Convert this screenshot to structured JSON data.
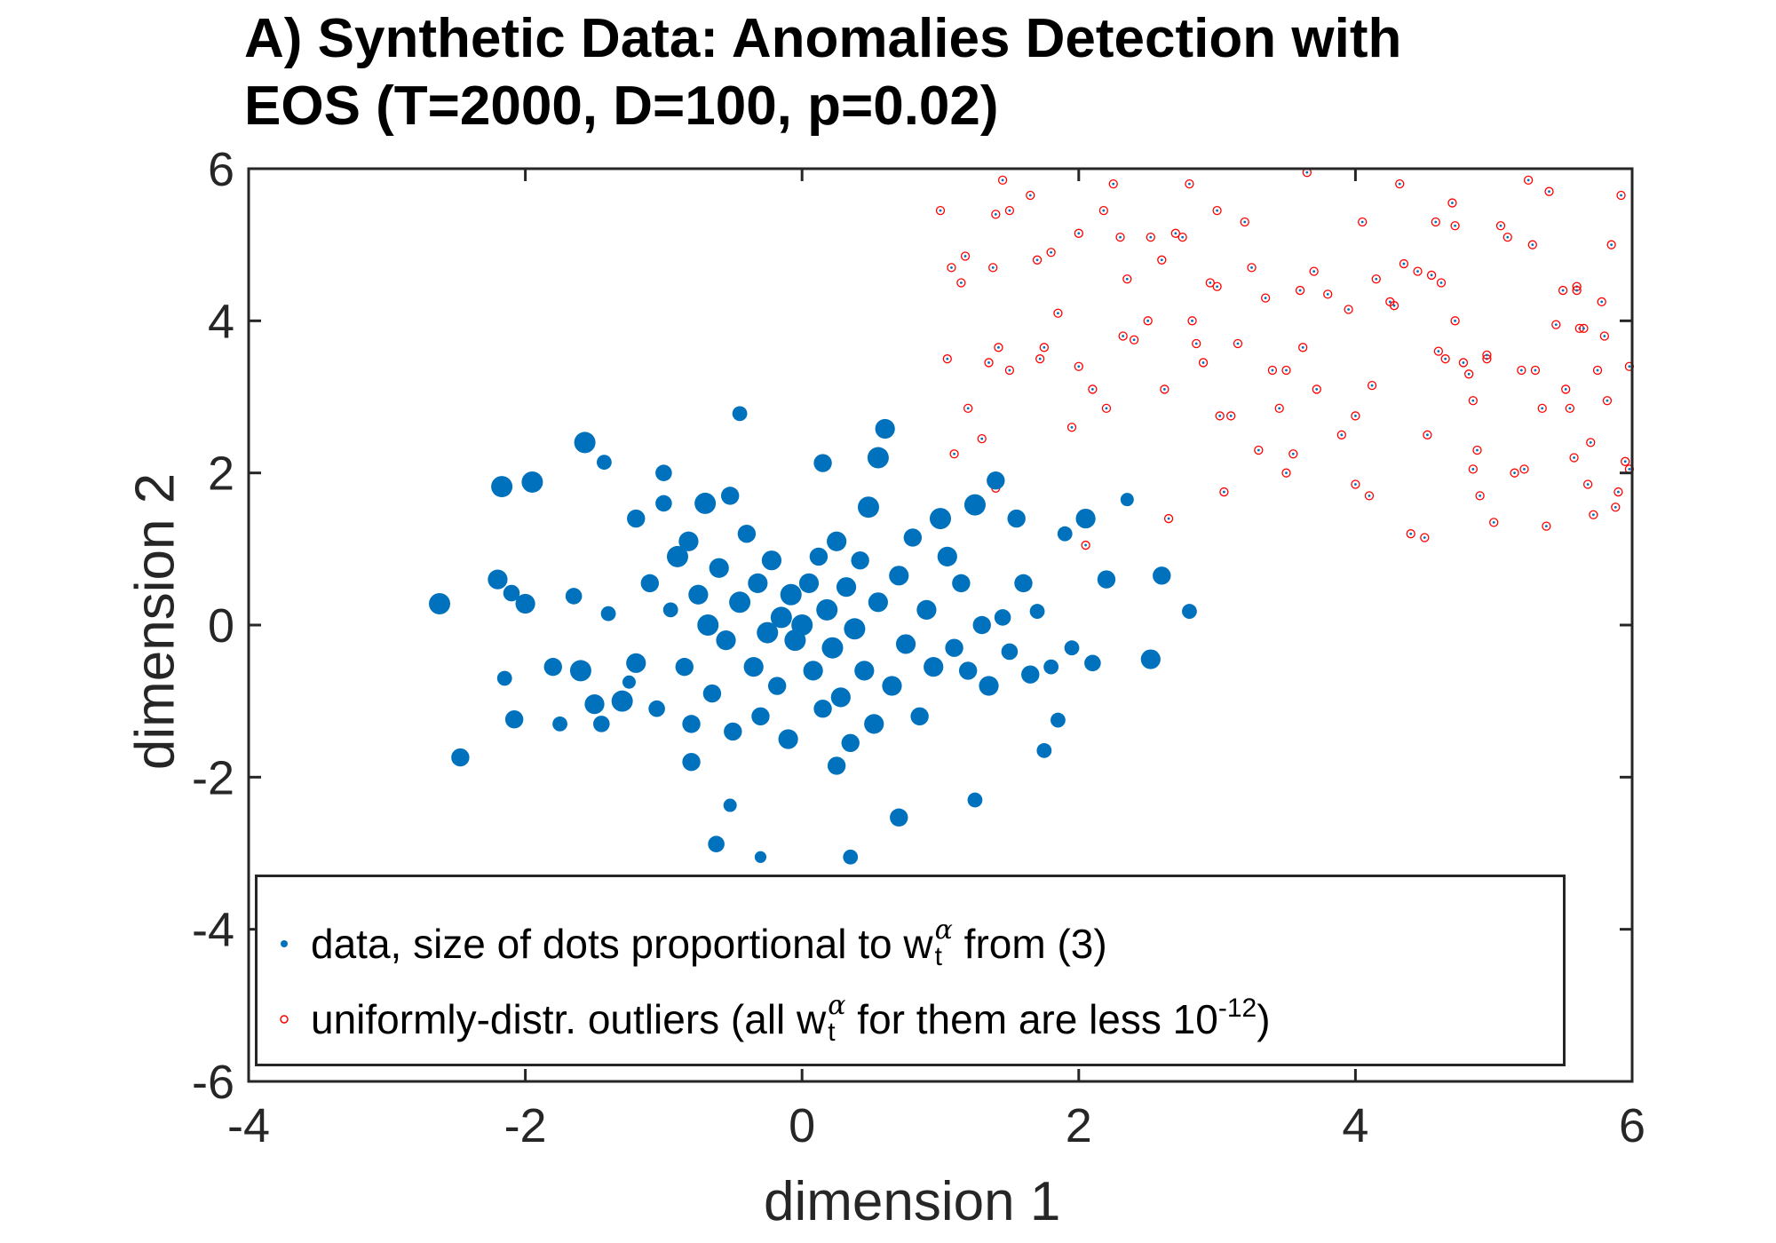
{
  "title": {
    "line1": "A) Synthetic Data: Anomalies Detection with",
    "line2": "EOS (T=2000, D=100, p=0.02)"
  },
  "colors": {
    "data": "#0072bd",
    "outliers": "#ff0000",
    "axis": "#262626"
  },
  "legend": {
    "item1": {
      "text": "data, size of dots proportional to w",
      "sup": "α",
      "sub": "t",
      "tail": " from (3)"
    },
    "item2": {
      "text": "uniformly-distr. outliers (all w",
      "sup": "α",
      "sub": "t",
      "middle": " for them are less 10",
      "exp": "-12",
      "tail": ")"
    }
  },
  "chart_data": {
    "type": "scatter",
    "title": "A) Synthetic Data: Anomalies Detection with EOS (T=2000, D=100, p=0.02)",
    "xlabel": "dimension 1",
    "ylabel": "dimension 2",
    "xlim": [
      -4,
      6
    ],
    "ylim": [
      -6,
      6
    ],
    "xticks": [
      "-4",
      "-2",
      "0",
      "2",
      "4",
      "6"
    ],
    "yticks": [
      "-6",
      "-4",
      "-2",
      "0",
      "2",
      "4",
      "6"
    ],
    "grid": false,
    "legend_position": "bottom-left",
    "series": [
      {
        "name": "data, size of dots proportional to w_t^α from (3)",
        "marker": "filled-dot",
        "color": "#0072bd",
        "points": [
          [
            -2.62,
            0.28,
            1.0
          ],
          [
            -2.47,
            -1.74,
            0.8
          ],
          [
            -2.17,
            1.82,
            1.0
          ],
          [
            -1.95,
            1.88,
            1.0
          ],
          [
            -2.2,
            0.6,
            0.9
          ],
          [
            -2.1,
            0.42,
            0.7
          ],
          [
            -2.0,
            0.28,
            0.9
          ],
          [
            -2.15,
            -0.7,
            0.6
          ],
          [
            -2.08,
            -1.24,
            0.8
          ],
          [
            -1.65,
            0.38,
            0.7
          ],
          [
            -1.6,
            -0.6,
            1.0
          ],
          [
            -1.5,
            -1.04,
            0.9
          ],
          [
            -1.45,
            -1.3,
            0.7
          ],
          [
            -1.4,
            0.15,
            0.6
          ],
          [
            -1.57,
            2.4,
            1.0
          ],
          [
            -1.43,
            2.14,
            0.6
          ],
          [
            -1.3,
            -1.0,
            1.0
          ],
          [
            -1.25,
            -0.75,
            0.5
          ],
          [
            -1.2,
            -0.5,
            0.9
          ],
          [
            -1.2,
            1.4,
            0.8
          ],
          [
            -1.1,
            0.55,
            0.8
          ],
          [
            -1.05,
            -1.1,
            0.7
          ],
          [
            -1.0,
            1.6,
            0.7
          ],
          [
            -0.95,
            0.2,
            0.6
          ],
          [
            -0.9,
            0.9,
            1.0
          ],
          [
            -0.85,
            -0.55,
            0.8
          ],
          [
            -0.82,
            1.1,
            0.9
          ],
          [
            -0.8,
            -1.3,
            0.8
          ],
          [
            -0.75,
            0.4,
            0.9
          ],
          [
            -0.7,
            1.6,
            1.0
          ],
          [
            -0.68,
            0.0,
            1.0
          ],
          [
            -0.65,
            -0.9,
            0.8
          ],
          [
            -0.6,
            0.75,
            0.9
          ],
          [
            -0.55,
            -0.2,
            0.9
          ],
          [
            -0.52,
            1.7,
            0.8
          ],
          [
            -0.5,
            -1.4,
            0.8
          ],
          [
            -0.45,
            0.3,
            1.0
          ],
          [
            -0.4,
            1.2,
            0.8
          ],
          [
            -0.35,
            -0.55,
            0.9
          ],
          [
            -0.32,
            0.55,
            0.9
          ],
          [
            -0.3,
            -1.2,
            0.8
          ],
          [
            -0.25,
            -0.1,
            1.0
          ],
          [
            -0.22,
            0.85,
            0.9
          ],
          [
            -0.18,
            -0.8,
            0.8
          ],
          [
            -0.15,
            0.1,
            1.0
          ],
          [
            -0.1,
            -1.5,
            0.9
          ],
          [
            -0.08,
            0.4,
            1.0
          ],
          [
            -0.05,
            -0.2,
            1.0
          ],
          [
            -0.45,
            2.78,
            0.6
          ],
          [
            -0.3,
            -3.05,
            0.4
          ],
          [
            -0.62,
            -2.88,
            0.7
          ],
          [
            -0.52,
            -2.37,
            0.5
          ],
          [
            -1.8,
            -0.55,
            0.8
          ],
          [
            -1.75,
            -1.3,
            0.6
          ],
          [
            0.0,
            0.0,
            1.0
          ],
          [
            0.05,
            0.55,
            0.9
          ],
          [
            0.08,
            -0.6,
            0.9
          ],
          [
            0.12,
            0.9,
            0.8
          ],
          [
            0.15,
            -1.1,
            0.8
          ],
          [
            0.18,
            0.2,
            1.0
          ],
          [
            0.22,
            -0.3,
            1.0
          ],
          [
            0.25,
            1.1,
            0.9
          ],
          [
            0.28,
            -0.95,
            0.9
          ],
          [
            0.32,
            0.5,
            0.9
          ],
          [
            0.35,
            -1.55,
            0.8
          ],
          [
            0.38,
            -0.05,
            1.0
          ],
          [
            0.42,
            0.85,
            0.8
          ],
          [
            0.45,
            -0.6,
            0.9
          ],
          [
            0.48,
            1.55,
            1.0
          ],
          [
            0.52,
            -1.3,
            0.9
          ],
          [
            0.55,
            0.3,
            0.9
          ],
          [
            0.6,
            2.58,
            0.9
          ],
          [
            0.65,
            -0.8,
            0.9
          ],
          [
            0.7,
            0.65,
            0.9
          ],
          [
            0.75,
            -0.25,
            0.9
          ],
          [
            0.8,
            1.15,
            0.8
          ],
          [
            0.85,
            -1.2,
            0.8
          ],
          [
            0.9,
            0.2,
            0.9
          ],
          [
            0.95,
            -0.55,
            0.9
          ],
          [
            1.0,
            1.4,
            1.0
          ],
          [
            1.05,
            0.9,
            0.9
          ],
          [
            1.1,
            -0.3,
            0.8
          ],
          [
            1.15,
            0.55,
            0.8
          ],
          [
            1.2,
            -0.6,
            0.8
          ],
          [
            1.25,
            1.58,
            1.0
          ],
          [
            1.3,
            0.0,
            0.8
          ],
          [
            1.35,
            -0.8,
            0.9
          ],
          [
            1.4,
            1.9,
            0.8
          ],
          [
            1.45,
            0.1,
            0.7
          ],
          [
            1.5,
            -0.35,
            0.7
          ],
          [
            1.55,
            1.4,
            0.8
          ],
          [
            1.6,
            0.55,
            0.8
          ],
          [
            1.65,
            -0.65,
            0.8
          ],
          [
            1.7,
            0.18,
            0.6
          ],
          [
            1.75,
            -1.65,
            0.6
          ],
          [
            1.8,
            -0.55,
            0.6
          ],
          [
            1.85,
            -1.25,
            0.6
          ],
          [
            1.9,
            1.2,
            0.6
          ],
          [
            1.95,
            -0.3,
            0.6
          ],
          [
            2.05,
            1.4,
            0.9
          ],
          [
            2.1,
            -0.5,
            0.7
          ],
          [
            2.2,
            0.6,
            0.8
          ],
          [
            2.35,
            1.65,
            0.5
          ],
          [
            2.52,
            -0.45,
            0.9
          ],
          [
            2.6,
            0.65,
            0.8
          ],
          [
            2.8,
            0.18,
            0.6
          ],
          [
            0.15,
            2.13,
            0.8
          ],
          [
            0.55,
            2.2,
            1.0
          ],
          [
            0.7,
            -2.53,
            0.8
          ],
          [
            0.25,
            -1.85,
            0.8
          ],
          [
            1.25,
            -2.3,
            0.6
          ],
          [
            0.35,
            -3.05,
            0.6
          ],
          [
            -1.0,
            2.0,
            0.7
          ],
          [
            -0.8,
            -1.8,
            0.8
          ]
        ]
      },
      {
        "name": "uniformly-distr. outliers (all w_t^α for them are less 10^-12)",
        "marker": "open-circle",
        "color": "#ff0000",
        "points": [
          [
            1.0,
            5.45
          ],
          [
            1.05,
            3.5
          ],
          [
            1.08,
            4.7
          ],
          [
            1.1,
            2.25
          ],
          [
            1.15,
            4.5
          ],
          [
            1.2,
            2.85
          ],
          [
            1.18,
            4.85
          ],
          [
            1.3,
            2.45
          ],
          [
            1.35,
            3.45
          ],
          [
            1.4,
            5.4
          ],
          [
            1.42,
            3.65
          ],
          [
            1.45,
            5.85
          ],
          [
            1.5,
            5.45
          ],
          [
            1.38,
            4.7
          ],
          [
            1.4,
            1.8
          ],
          [
            1.5,
            3.35
          ],
          [
            1.65,
            5.65
          ],
          [
            1.7,
            4.8
          ],
          [
            1.72,
            3.5
          ],
          [
            1.75,
            3.65
          ],
          [
            1.8,
            4.9
          ],
          [
            1.85,
            4.1
          ],
          [
            1.95,
            2.6
          ],
          [
            2.0,
            5.15
          ],
          [
            2.0,
            3.4
          ],
          [
            2.05,
            1.05
          ],
          [
            2.1,
            3.1
          ],
          [
            2.18,
            5.45
          ],
          [
            2.2,
            2.85
          ],
          [
            2.25,
            5.8
          ],
          [
            2.3,
            5.1
          ],
          [
            2.32,
            3.8
          ],
          [
            2.35,
            4.55
          ],
          [
            2.4,
            3.75
          ],
          [
            2.5,
            4.0
          ],
          [
            2.52,
            5.1
          ],
          [
            2.6,
            4.8
          ],
          [
            2.65,
            1.4
          ],
          [
            2.7,
            5.15
          ],
          [
            2.75,
            5.1
          ],
          [
            2.8,
            5.8
          ],
          [
            2.82,
            4.0
          ],
          [
            2.85,
            3.7
          ],
          [
            2.9,
            3.45
          ],
          [
            2.95,
            4.5
          ],
          [
            3.0,
            4.45
          ],
          [
            3.0,
            5.45
          ],
          [
            3.02,
            2.75
          ],
          [
            3.05,
            1.75
          ],
          [
            3.1,
            2.75
          ],
          [
            3.15,
            3.7
          ],
          [
            3.2,
            5.3
          ],
          [
            3.25,
            4.7
          ],
          [
            3.3,
            2.3
          ],
          [
            3.35,
            4.3
          ],
          [
            3.4,
            3.35
          ],
          [
            3.45,
            2.85
          ],
          [
            3.5,
            3.35
          ],
          [
            3.5,
            2.0
          ],
          [
            3.55,
            2.25
          ],
          [
            3.6,
            4.4
          ],
          [
            3.62,
            3.65
          ],
          [
            3.65,
            5.95
          ],
          [
            3.7,
            4.65
          ],
          [
            3.8,
            4.35
          ],
          [
            3.9,
            2.5
          ],
          [
            3.95,
            4.15
          ],
          [
            4.0,
            2.75
          ],
          [
            4.0,
            1.85
          ],
          [
            4.05,
            5.3
          ],
          [
            4.1,
            1.7
          ],
          [
            4.12,
            3.15
          ],
          [
            4.15,
            4.55
          ],
          [
            4.25,
            4.25
          ],
          [
            4.28,
            4.2
          ],
          [
            4.32,
            5.8
          ],
          [
            4.35,
            4.75
          ],
          [
            4.4,
            1.2
          ],
          [
            4.45,
            4.65
          ],
          [
            4.5,
            1.15
          ],
          [
            4.52,
            2.5
          ],
          [
            4.55,
            4.6
          ],
          [
            4.58,
            5.3
          ],
          [
            4.6,
            3.6
          ],
          [
            4.62,
            4.5
          ],
          [
            4.65,
            3.5
          ],
          [
            4.7,
            5.55
          ],
          [
            4.72,
            4.0
          ],
          [
            4.78,
            3.45
          ],
          [
            4.82,
            3.3
          ],
          [
            4.85,
            2.05
          ],
          [
            4.88,
            2.3
          ],
          [
            4.9,
            1.7
          ],
          [
            4.95,
            3.5
          ],
          [
            4.95,
            3.55
          ],
          [
            5.0,
            1.35
          ],
          [
            5.05,
            5.25
          ],
          [
            5.1,
            5.1
          ],
          [
            5.15,
            2.0
          ],
          [
            5.2,
            3.35
          ],
          [
            5.22,
            2.05
          ],
          [
            5.25,
            5.85
          ],
          [
            5.28,
            5.0
          ],
          [
            5.3,
            3.35
          ],
          [
            5.35,
            2.85
          ],
          [
            5.38,
            1.3
          ],
          [
            5.4,
            5.7
          ],
          [
            5.45,
            3.95
          ],
          [
            5.5,
            4.4
          ],
          [
            5.52,
            3.1
          ],
          [
            5.55,
            2.85
          ],
          [
            5.58,
            2.2
          ],
          [
            5.6,
            4.45
          ],
          [
            5.62,
            3.9
          ],
          [
            5.65,
            3.9
          ],
          [
            5.68,
            1.85
          ],
          [
            5.7,
            2.4
          ],
          [
            5.72,
            1.45
          ],
          [
            5.75,
            3.35
          ],
          [
            5.78,
            4.25
          ],
          [
            5.8,
            3.8
          ],
          [
            5.82,
            2.95
          ],
          [
            5.85,
            5.0
          ],
          [
            5.88,
            1.55
          ],
          [
            5.9,
            1.75
          ],
          [
            5.92,
            5.65
          ],
          [
            5.95,
            2.15
          ],
          [
            5.98,
            3.4
          ],
          [
            5.98,
            2.05
          ],
          [
            5.6,
            4.4
          ],
          [
            4.85,
            2.95
          ],
          [
            4.72,
            5.25
          ],
          [
            3.72,
            3.1
          ],
          [
            2.62,
            3.1
          ]
        ]
      }
    ]
  }
}
